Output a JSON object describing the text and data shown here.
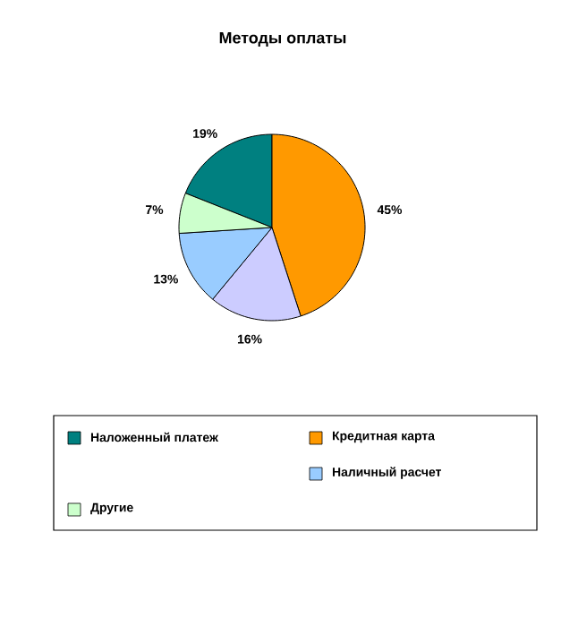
{
  "chart_data": {
    "type": "pie",
    "title": "Методы оплаты",
    "categories": [
      "Наложенный платеж",
      "Кредитная карта",
      null,
      "Наличный расчет",
      "Другие"
    ],
    "values": [
      19,
      45,
      16,
      13,
      7
    ],
    "value_labels": [
      "19%",
      "45%",
      "16%",
      "13%",
      "7%"
    ],
    "colors": [
      "#008080",
      "#ff9900",
      "#ccccff",
      "#99ccff",
      "#ccffcc"
    ],
    "legend": "bottom"
  }
}
